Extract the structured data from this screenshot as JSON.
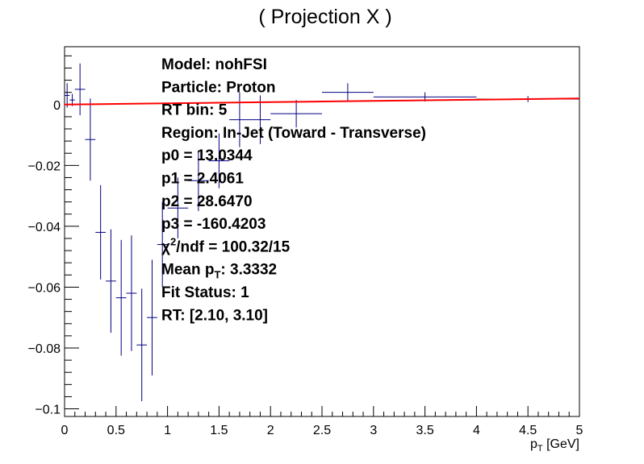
{
  "chart_data": {
    "type": "scatter",
    "title": "( Projection X )",
    "xlabel": {
      "main": "p",
      "sub": "T",
      "unit": " [GeV]"
    },
    "ylabel": "",
    "xlim": [
      0,
      5
    ],
    "ylim": [
      -0.1025,
      0.019
    ],
    "x_ticks": [
      0,
      0.5,
      1,
      1.5,
      2,
      2.5,
      3,
      3.5,
      4,
      4.5,
      5
    ],
    "x_tick_labels": [
      "0",
      "0.5",
      "1",
      "1.5",
      "2",
      "2.5",
      "3",
      "3.5",
      "4",
      "4.5",
      "5"
    ],
    "y_ticks": [
      0,
      -0.02,
      -0.04,
      -0.06,
      -0.08,
      -0.1
    ],
    "y_tick_labels": [
      "0",
      "−0.02",
      "−0.04",
      "−0.06",
      "−0.08",
      "−0.1"
    ],
    "grid": false,
    "legend": "none",
    "series": [
      {
        "kind": "points_with_errors",
        "color": "#000080",
        "points": [
          {
            "x": 0.025,
            "xerr": 0.025,
            "y": 0.003,
            "yerr": 0.004
          },
          {
            "x": 0.075,
            "xerr": 0.025,
            "y": 0.0015,
            "yerr": 0.002
          },
          {
            "x": 0.15,
            "xerr": 0.05,
            "y": 0.005,
            "yerr": 0.0085
          },
          {
            "x": 0.25,
            "xerr": 0.05,
            "y": -0.0115,
            "yerr": 0.0135
          },
          {
            "x": 0.35,
            "xerr": 0.05,
            "y": -0.042,
            "yerr": 0.0155
          },
          {
            "x": 0.45,
            "xerr": 0.05,
            "y": -0.058,
            "yerr": 0.017
          },
          {
            "x": 0.55,
            "xerr": 0.05,
            "y": -0.0635,
            "yerr": 0.019
          },
          {
            "x": 0.65,
            "xerr": 0.05,
            "y": -0.062,
            "yerr": 0.019
          },
          {
            "x": 0.75,
            "xerr": 0.05,
            "y": -0.079,
            "yerr": 0.0185
          },
          {
            "x": 0.85,
            "xerr": 0.05,
            "y": -0.07,
            "yerr": 0.019
          },
          {
            "x": 0.95,
            "xerr": 0.05,
            "y": -0.046,
            "yerr": 0.014
          },
          {
            "x": 1.1,
            "xerr": 0.1,
            "y": -0.034,
            "yerr": 0.01
          },
          {
            "x": 1.3,
            "xerr": 0.1,
            "y": -0.025,
            "yerr": 0.01
          },
          {
            "x": 1.5,
            "xerr": 0.1,
            "y": -0.0185,
            "yerr": 0.009
          },
          {
            "x": 1.7,
            "xerr": 0.1,
            "y": -0.005,
            "yerr": 0.009
          },
          {
            "x": 1.9,
            "xerr": 0.1,
            "y": -0.005,
            "yerr": 0.008
          },
          {
            "x": 2.25,
            "xerr": 0.25,
            "y": -0.003,
            "yerr": 0.0045
          },
          {
            "x": 2.75,
            "xerr": 0.25,
            "y": 0.004,
            "yerr": 0.003
          },
          {
            "x": 3.5,
            "xerr": 0.5,
            "y": 0.0025,
            "yerr": 0.0015
          },
          {
            "x": 4.5,
            "xerr": 0.5,
            "y": 0.0018,
            "yerr": 0.001
          }
        ]
      },
      {
        "kind": "fit_line",
        "color": "#ff0000",
        "x": [
          0,
          0.5,
          1,
          1.5,
          2,
          2.5,
          3,
          3.5,
          4,
          4.5,
          5
        ],
        "y": [
          0,
          0.0002,
          0.0004,
          0.0006,
          0.0008,
          0.001,
          0.0012,
          0.0014,
          0.0016,
          0.0018,
          0.002
        ]
      }
    ],
    "annotations": [
      {
        "name": "model",
        "text": "Model: nohFSI"
      },
      {
        "name": "particle",
        "text": "Particle: Proton"
      },
      {
        "name": "rt-bin",
        "text": "RT bin: 5"
      },
      {
        "name": "region",
        "text": "Region: In-Jet (Toward - Transverse)"
      },
      {
        "name": "p0",
        "text": "p0 = 13.0344"
      },
      {
        "name": "p1",
        "text": "p1 = 2.4061"
      },
      {
        "name": "p2",
        "text": "p2 = 28.6470"
      },
      {
        "name": "p3",
        "text": "p3 = -160.4203"
      },
      {
        "name": "chi2",
        "pre": "χ",
        "sup": "2",
        "post": "/ndf = 100.32/15"
      },
      {
        "name": "mean-pt",
        "pre": "Mean p",
        "sub": "T",
        "post": ": 3.3332"
      },
      {
        "name": "fit-status",
        "text": "Fit Status: 1"
      },
      {
        "name": "rt-range",
        "text": "RT: [2.10, 3.10]"
      }
    ]
  }
}
